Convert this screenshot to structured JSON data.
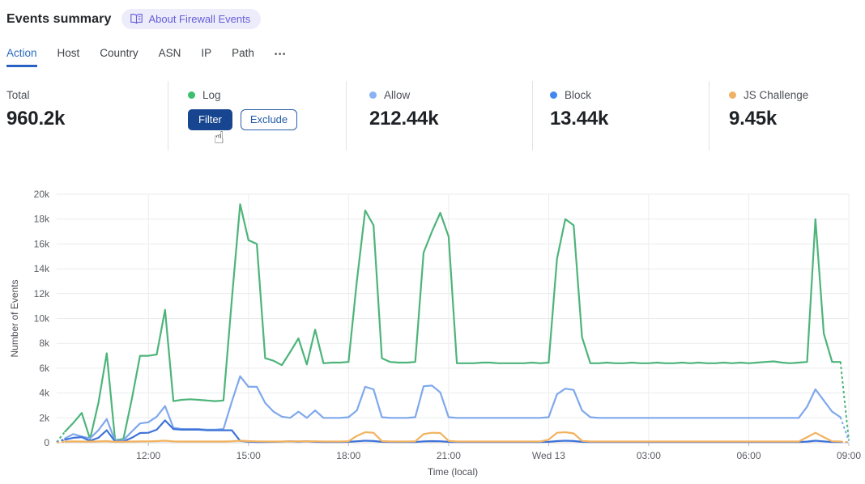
{
  "header": {
    "title": "Events summary",
    "badge_label": "About Firewall Events",
    "badge_color": "#655dd8",
    "badge_bg": "#edecfb"
  },
  "tabs": {
    "items": [
      {
        "label": "Action",
        "active": true
      },
      {
        "label": "Host",
        "active": false
      },
      {
        "label": "Country",
        "active": false
      },
      {
        "label": "ASN",
        "active": false
      },
      {
        "label": "IP",
        "active": false
      },
      {
        "label": "Path",
        "active": false
      }
    ],
    "more_label": "•••",
    "active_color": "#2a62c4"
  },
  "stats": {
    "total": {
      "label": "Total",
      "value": "960.2k"
    },
    "cards": [
      {
        "label": "Log",
        "dot_color": "#3cc06f",
        "filter_label": "Filter",
        "exclude_label": "Exclude"
      },
      {
        "label": "Allow",
        "dot_color": "#8ab2f4",
        "value": "212.44k"
      },
      {
        "label": "Block",
        "dot_color": "#4287f0",
        "value": "13.44k"
      },
      {
        "label": "JS Challenge",
        "dot_color": "#f0b266",
        "value": "9.45k"
      }
    ],
    "button_primary_bg": "#17458f",
    "button_secondary_color": "#205ba6"
  },
  "chart_data": {
    "type": "line",
    "title": "",
    "xlabel": "Time (local)",
    "ylabel": "Number of Events",
    "ylim": [
      0,
      20000
    ],
    "grid": true,
    "legend_position": "in-stat-cards",
    "units": "events",
    "y_tick_step": 2000,
    "y_tick_labels": [
      "0",
      "2k",
      "4k",
      "6k",
      "8k",
      "10k",
      "12k",
      "14k",
      "16k",
      "18k",
      "20k"
    ],
    "x_ticks": [
      {
        "index": 11,
        "label": "12:00"
      },
      {
        "index": 23,
        "label": "15:00"
      },
      {
        "index": 35,
        "label": "18:00"
      },
      {
        "index": 47,
        "label": "21:00"
      },
      {
        "index": 59,
        "label": "Wed 13"
      },
      {
        "index": 71,
        "label": "03:00"
      },
      {
        "index": 83,
        "label": "06:00"
      },
      {
        "index": 95,
        "label": "09:00"
      }
    ],
    "x": [
      "09:15",
      "09:30",
      "09:45",
      "10:00",
      "10:15",
      "10:30",
      "10:45",
      "11:00",
      "11:15",
      "11:30",
      "11:45",
      "12:00",
      "12:15",
      "12:30",
      "12:45",
      "13:00",
      "13:15",
      "13:30",
      "13:45",
      "14:00",
      "14:15",
      "14:30",
      "14:45",
      "15:00",
      "15:15",
      "15:30",
      "15:45",
      "16:00",
      "16:15",
      "16:30",
      "16:45",
      "17:00",
      "17:15",
      "17:30",
      "17:45",
      "18:00",
      "18:15",
      "18:30",
      "18:45",
      "19:00",
      "19:15",
      "19:30",
      "19:45",
      "20:00",
      "20:15",
      "20:30",
      "20:45",
      "21:00",
      "21:15",
      "21:30",
      "21:45",
      "22:00",
      "22:15",
      "22:30",
      "22:45",
      "23:00",
      "23:15",
      "23:30",
      "23:45",
      "00:00",
      "00:15",
      "00:30",
      "00:45",
      "01:00",
      "01:15",
      "01:30",
      "01:45",
      "02:00",
      "02:15",
      "02:30",
      "02:45",
      "03:00",
      "03:15",
      "03:30",
      "03:45",
      "04:00",
      "04:15",
      "04:30",
      "04:45",
      "05:00",
      "05:15",
      "05:30",
      "05:45",
      "06:00",
      "06:15",
      "06:30",
      "06:45",
      "07:00",
      "07:15",
      "07:30",
      "07:45",
      "08:00",
      "08:15",
      "08:30",
      "08:45",
      "09:00"
    ],
    "dashed_first_and_last_segment": true,
    "series": [
      {
        "name": "Log",
        "color": "#4db47a",
        "values": [
          50,
          900,
          1600,
          2400,
          300,
          3200,
          7200,
          200,
          300,
          3500,
          7000,
          7000,
          7100,
          10700,
          3350,
          3450,
          3500,
          3450,
          3400,
          3350,
          3400,
          11500,
          19200,
          16300,
          16000,
          6800,
          6600,
          6250,
          7300,
          8400,
          6300,
          9100,
          6400,
          6450,
          6450,
          6500,
          13000,
          18700,
          17500,
          6800,
          6500,
          6450,
          6450,
          6500,
          15300,
          17000,
          18500,
          16600,
          6400,
          6400,
          6400,
          6450,
          6450,
          6400,
          6400,
          6400,
          6400,
          6450,
          6400,
          6450,
          14800,
          18000,
          17500,
          8500,
          6400,
          6400,
          6450,
          6400,
          6400,
          6450,
          6400,
          6400,
          6450,
          6400,
          6400,
          6450,
          6400,
          6450,
          6400,
          6400,
          6450,
          6400,
          6450,
          6400,
          6450,
          6500,
          6550,
          6450,
          6400,
          6450,
          6500,
          18000,
          8800,
          6500,
          6500,
          200
        ]
      },
      {
        "name": "Allow",
        "color": "#7fa8ec",
        "values": [
          20,
          350,
          700,
          500,
          350,
          1000,
          1900,
          150,
          200,
          900,
          1550,
          1650,
          2100,
          2950,
          1200,
          1100,
          1100,
          1100,
          1050,
          1050,
          1100,
          3300,
          5350,
          4500,
          4500,
          3200,
          2500,
          2100,
          2000,
          2500,
          2000,
          2600,
          2000,
          2000,
          2000,
          2050,
          2600,
          4500,
          4300,
          2050,
          2000,
          2000,
          2000,
          2050,
          4550,
          4600,
          4050,
          2050,
          2000,
          2000,
          2000,
          2000,
          2000,
          2000,
          2000,
          2000,
          2000,
          2000,
          2000,
          2050,
          3900,
          4350,
          4250,
          2600,
          2050,
          2000,
          2000,
          2000,
          2000,
          2000,
          2000,
          2000,
          2000,
          2000,
          2000,
          2000,
          2000,
          2000,
          2000,
          2000,
          2000,
          2000,
          2000,
          2000,
          2000,
          2000,
          2000,
          2000,
          2000,
          2000,
          2900,
          4300,
          3400,
          2500,
          2050,
          150
        ]
      },
      {
        "name": "Block",
        "color": "#3f73d9",
        "values": [
          20,
          250,
          400,
          450,
          150,
          400,
          1000,
          100,
          100,
          400,
          780,
          800,
          1050,
          1800,
          1100,
          1050,
          1050,
          1050,
          1000,
          1000,
          1000,
          1000,
          150,
          80,
          60,
          60,
          70,
          90,
          120,
          90,
          120,
          70,
          60,
          60,
          60,
          70,
          120,
          160,
          140,
          70,
          60,
          60,
          60,
          60,
          110,
          130,
          120,
          70,
          60,
          60,
          60,
          60,
          60,
          60,
          60,
          60,
          60,
          60,
          60,
          70,
          130,
          160,
          140,
          70,
          60,
          60,
          60,
          60,
          60,
          60,
          60,
          60,
          60,
          60,
          60,
          60,
          60,
          60,
          60,
          60,
          60,
          60,
          60,
          60,
          60,
          60,
          60,
          60,
          60,
          60,
          90,
          160,
          110,
          60,
          60,
          30
        ]
      },
      {
        "name": "JS Challenge",
        "color": "#f2b25e",
        "values": [
          10,
          90,
          110,
          100,
          90,
          110,
          130,
          80,
          80,
          100,
          110,
          110,
          130,
          160,
          110,
          100,
          100,
          100,
          100,
          100,
          100,
          120,
          160,
          130,
          110,
          100,
          100,
          100,
          110,
          120,
          110,
          120,
          100,
          100,
          100,
          120,
          550,
          850,
          800,
          130,
          100,
          100,
          100,
          110,
          700,
          800,
          780,
          150,
          100,
          100,
          100,
          100,
          100,
          100,
          100,
          100,
          100,
          100,
          100,
          250,
          800,
          850,
          750,
          150,
          100,
          100,
          100,
          100,
          100,
          100,
          100,
          100,
          100,
          100,
          100,
          100,
          100,
          100,
          100,
          100,
          100,
          100,
          100,
          100,
          100,
          100,
          100,
          100,
          100,
          100,
          450,
          800,
          450,
          120,
          100,
          40
        ]
      }
    ]
  }
}
